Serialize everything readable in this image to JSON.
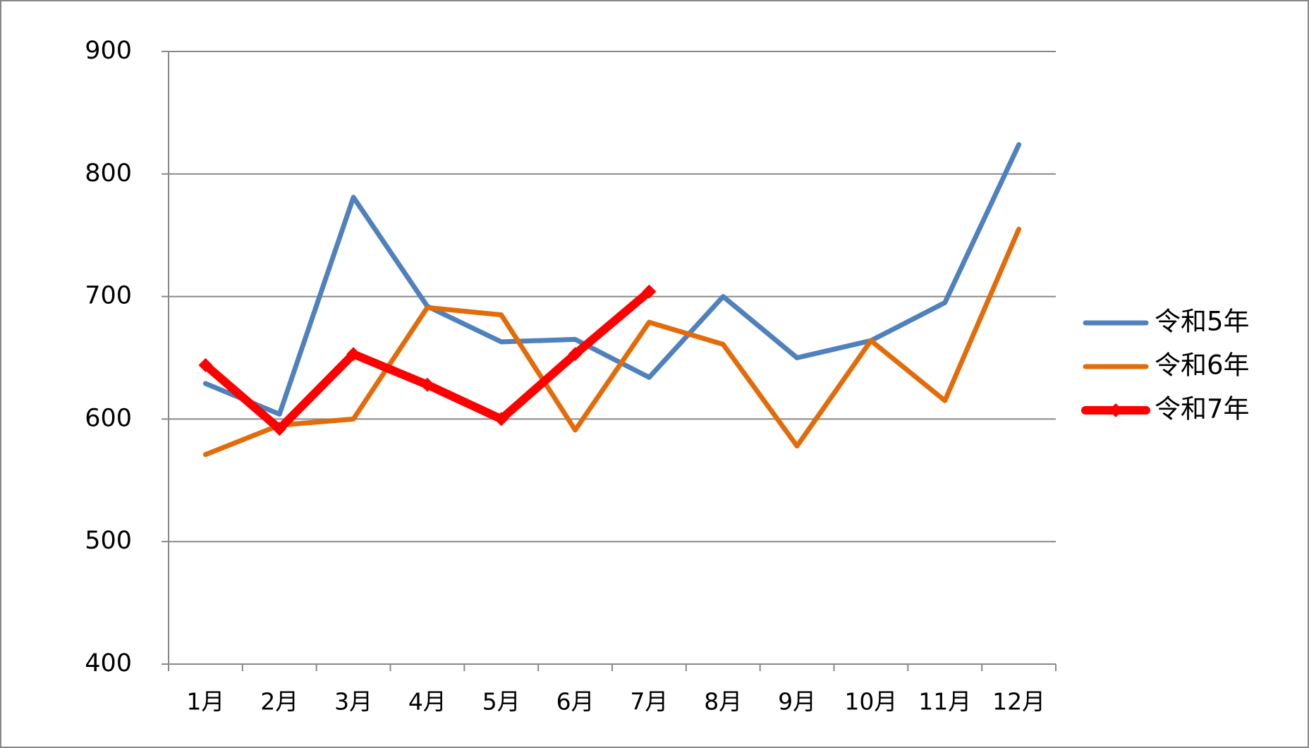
{
  "chart_data": {
    "type": "line",
    "categories": [
      "1月",
      "2月",
      "3月",
      "4月",
      "5月",
      "6月",
      "7月",
      "8月",
      "9月",
      "10月",
      "11月",
      "12月"
    ],
    "series": [
      {
        "name": "令和5年",
        "color": "#4f81bd",
        "values": [
          629,
          604,
          781,
          692,
          663,
          665,
          634,
          700,
          650,
          664,
          695,
          824
        ]
      },
      {
        "name": "令和6年",
        "color": "#e36c0a",
        "values": [
          571,
          595,
          600,
          691,
          685,
          591,
          679,
          661,
          578,
          664,
          615,
          755
        ]
      },
      {
        "name": "令和7年",
        "color": "#ff0000",
        "values": [
          644,
          592,
          653,
          628,
          600,
          653,
          704,
          null,
          null,
          null,
          null,
          null
        ]
      }
    ],
    "ylim": [
      400,
      900
    ],
    "yticks": [
      400,
      500,
      600,
      700,
      800,
      900
    ],
    "grid": true,
    "legend": "right"
  }
}
